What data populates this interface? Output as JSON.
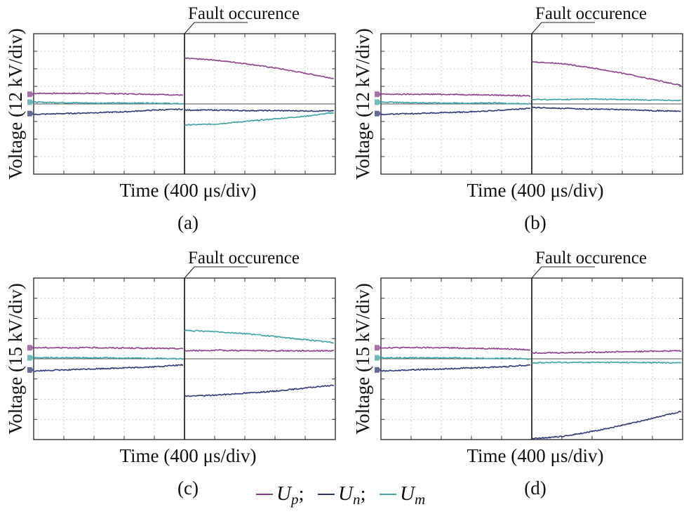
{
  "legend": {
    "entries": [
      {
        "symbol": "U",
        "sub": "p",
        "sep": ";",
        "color": "#8e3f8e"
      },
      {
        "symbol": "U",
        "sub": "n",
        "sep": ";",
        "color": "#2d3c78"
      },
      {
        "symbol": "U",
        "sub": "m",
        "sep": "",
        "color": "#3fa3a3"
      }
    ]
  },
  "chart_data": [
    {
      "type": "line",
      "panel_label": "(a)",
      "annotation": "Fault occurence",
      "xlabel": "Time (400 μs/div)",
      "ylabel": "Voltage (12 kV/div)",
      "x_divisions": 10,
      "y_divisions": 8,
      "xlim": [
        0,
        10
      ],
      "ylim": [
        -4,
        4
      ],
      "fault_x": 5,
      "grid": true,
      "series": [
        {
          "name": "Up",
          "color": "#8e3f8e",
          "x": [
            0,
            2,
            4,
            4.95,
            5.01,
            6,
            7,
            8,
            9,
            9.95
          ],
          "y": [
            0.6,
            0.6,
            0.55,
            0.5,
            2.6,
            2.5,
            2.3,
            2.05,
            1.75,
            1.45
          ]
        },
        {
          "name": "Um",
          "color": "#3fa3a3",
          "x": [
            0,
            2,
            4,
            4.95,
            5.01,
            6,
            7,
            8,
            9,
            9.95
          ],
          "y": [
            0.1,
            0.05,
            0.05,
            0.0,
            -1.2,
            -1.15,
            -1.0,
            -0.85,
            -0.7,
            -0.5
          ]
        },
        {
          "name": "Un",
          "color": "#2d3c78",
          "x": [
            0,
            1,
            2,
            3,
            4,
            4.95,
            5.01,
            6,
            7,
            8,
            9,
            9.95
          ],
          "y": [
            -0.6,
            -0.55,
            -0.5,
            -0.45,
            -0.35,
            -0.3,
            -0.35,
            -0.35,
            -0.38,
            -0.38,
            -0.4,
            -0.4
          ]
        }
      ],
      "markers": [
        {
          "series": "Up",
          "y": 0.55
        },
        {
          "series": "Um",
          "y": 0.1
        },
        {
          "series": "Un",
          "y": -0.55
        }
      ]
    },
    {
      "type": "line",
      "panel_label": "(b)",
      "annotation": "Fault occurence",
      "xlabel": "Time (400 μs/div)",
      "ylabel": "Voltage (12 kV/div)",
      "x_divisions": 10,
      "y_divisions": 8,
      "xlim": [
        0,
        10
      ],
      "ylim": [
        -4,
        4
      ],
      "fault_x": 5,
      "grid": true,
      "series": [
        {
          "name": "Up",
          "color": "#8e3f8e",
          "x": [
            0,
            2,
            4,
            4.95,
            5.01,
            6,
            7,
            8,
            9,
            9.95
          ],
          "y": [
            0.55,
            0.55,
            0.5,
            0.45,
            2.4,
            2.3,
            2.05,
            1.75,
            1.4,
            1.05
          ]
        },
        {
          "name": "Um",
          "color": "#3fa3a3",
          "x": [
            0,
            2,
            4,
            4.95,
            5.01,
            6,
            7,
            8,
            9,
            9.95
          ],
          "y": [
            0.1,
            0.05,
            0.05,
            0.0,
            0.25,
            0.25,
            0.28,
            0.25,
            0.22,
            0.2
          ]
        },
        {
          "name": "Un",
          "color": "#2d3c78",
          "x": [
            0,
            1,
            2,
            3,
            4,
            4.95,
            5.01,
            6,
            7,
            8,
            9,
            9.95
          ],
          "y": [
            -0.6,
            -0.55,
            -0.5,
            -0.45,
            -0.35,
            -0.25,
            -0.2,
            -0.25,
            -0.3,
            -0.32,
            -0.38,
            -0.42
          ]
        }
      ],
      "markers": [
        {
          "series": "Up",
          "y": 0.55
        },
        {
          "series": "Um",
          "y": 0.1
        },
        {
          "series": "Un",
          "y": -0.55
        }
      ]
    },
    {
      "type": "line",
      "panel_label": "(c)",
      "annotation": "Fault occurence",
      "xlabel": "Time (400 μs/div)",
      "ylabel": "Voltage (15 kV/div)",
      "x_divisions": 10,
      "y_divisions": 8,
      "xlim": [
        0,
        10
      ],
      "ylim": [
        -4,
        4
      ],
      "fault_x": 5,
      "grid": true,
      "series": [
        {
          "name": "Up",
          "color": "#8e3f8e",
          "x": [
            0,
            2,
            4,
            4.95,
            5.01,
            6,
            8,
            9.95
          ],
          "y": [
            0.55,
            0.55,
            0.52,
            0.5,
            0.4,
            0.42,
            0.4,
            0.4
          ]
        },
        {
          "name": "Um",
          "color": "#3fa3a3",
          "x": [
            0,
            2,
            4,
            4.95,
            5.01,
            6,
            7,
            8,
            9,
            9.95
          ],
          "y": [
            0.05,
            0.05,
            0.02,
            0.0,
            1.4,
            1.35,
            1.25,
            1.1,
            0.95,
            0.8
          ]
        },
        {
          "name": "Un",
          "color": "#2d3c78",
          "x": [
            0,
            1,
            2,
            3,
            4,
            4.95,
            5.01,
            6,
            7,
            8,
            9,
            9.95
          ],
          "y": [
            -0.6,
            -0.55,
            -0.5,
            -0.45,
            -0.4,
            -0.3,
            -1.85,
            -1.8,
            -1.7,
            -1.6,
            -1.45,
            -1.3
          ]
        }
      ],
      "markers": [
        {
          "series": "Up",
          "y": 0.55
        },
        {
          "series": "Um",
          "y": 0.05
        },
        {
          "series": "Un",
          "y": -0.55
        }
      ]
    },
    {
      "type": "line",
      "panel_label": "(d)",
      "annotation": "Fault occurence",
      "xlabel": "Time (400 μs/div)",
      "ylabel": "Voltage (15 kV/div)",
      "x_divisions": 10,
      "y_divisions": 8,
      "xlim": [
        0,
        10
      ],
      "ylim": [
        -4,
        4
      ],
      "fault_x": 5,
      "grid": true,
      "series": [
        {
          "name": "Up",
          "color": "#8e3f8e",
          "x": [
            0,
            2,
            4,
            4.95,
            5.01,
            6,
            8,
            9.95
          ],
          "y": [
            0.55,
            0.55,
            0.5,
            0.45,
            0.3,
            0.3,
            0.35,
            0.4
          ]
        },
        {
          "name": "Um",
          "color": "#3fa3a3",
          "x": [
            0,
            2,
            4,
            4.95,
            5.01,
            6,
            8,
            9.95
          ],
          "y": [
            0.05,
            0.05,
            0.02,
            0.0,
            -0.2,
            -0.18,
            -0.18,
            -0.2
          ]
        },
        {
          "name": "Un",
          "color": "#2d3c78",
          "x": [
            0,
            1,
            2,
            3,
            4,
            4.95,
            5.01,
            6,
            7,
            8,
            9,
            9.95
          ],
          "y": [
            -0.6,
            -0.55,
            -0.5,
            -0.45,
            -0.4,
            -0.3,
            -3.95,
            -3.85,
            -3.6,
            -3.3,
            -2.95,
            -2.6
          ]
        }
      ],
      "markers": [
        {
          "series": "Up",
          "y": 0.55
        },
        {
          "series": "Um",
          "y": 0.05
        },
        {
          "series": "Un",
          "y": -0.55
        }
      ]
    }
  ]
}
